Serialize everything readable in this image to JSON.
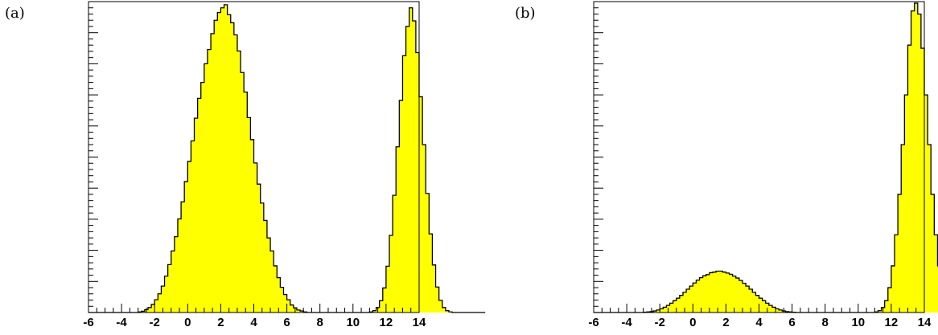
{
  "chart_data": [
    {
      "type": "bar",
      "panel_label": "(a)",
      "xlim": [
        -6,
        14
      ],
      "x_ticks": [
        "-6",
        "-4",
        "-2",
        "0",
        "2",
        "4",
        "6",
        "8",
        "10",
        "12",
        "14"
      ],
      "ylim": [
        0,
        1.0
      ],
      "y_tick_labels": false,
      "grid": false,
      "fill_color": "#ffff00",
      "line_color": "#000000",
      "bin_width": 0.2,
      "bin_start": -6,
      "values": [
        0,
        0,
        0,
        0,
        0,
        0,
        0,
        0,
        0,
        0,
        0,
        0,
        0,
        0,
        0,
        0.002,
        0.004,
        0.009,
        0.016,
        0.026,
        0.041,
        0.06,
        0.085,
        0.117,
        0.154,
        0.198,
        0.244,
        0.301,
        0.356,
        0.421,
        0.486,
        0.552,
        0.625,
        0.689,
        0.74,
        0.8,
        0.846,
        0.897,
        0.94,
        0.965,
        0.98,
        0.99,
        0.958,
        0.932,
        0.893,
        0.841,
        0.772,
        0.709,
        0.627,
        0.556,
        0.481,
        0.413,
        0.352,
        0.296,
        0.24,
        0.198,
        0.15,
        0.112,
        0.081,
        0.058,
        0.041,
        0.024,
        0.015,
        0.008,
        0.005,
        0.002,
        0,
        0,
        0,
        0,
        0,
        0,
        0,
        0,
        0,
        0,
        0,
        0,
        0,
        0,
        0,
        0,
        0,
        0,
        0,
        0.002,
        0.006,
        0.016,
        0.038,
        0.079,
        0.149,
        0.248,
        0.377,
        0.533,
        0.682,
        0.826,
        0.92,
        0.98,
        0.938,
        0.836,
        0.694,
        0.54,
        0.383,
        0.253,
        0.153,
        0.082,
        0.039,
        0.016,
        0.006,
        0.002,
        0,
        0,
        0,
        0,
        0,
        0,
        0,
        0,
        0,
        0
      ]
    },
    {
      "type": "bar",
      "panel_label": "(b)",
      "xlim": [
        -6,
        14
      ],
      "x_ticks": [
        "-6",
        "-4",
        "-2",
        "0",
        "2",
        "4",
        "6",
        "8",
        "10",
        "12",
        "14"
      ],
      "ylim": [
        0,
        1.0
      ],
      "y_tick_labels": false,
      "grid": false,
      "fill_color": "#ffff00",
      "line_color": "#000000",
      "bin_width": 0.2,
      "bin_start": -6,
      "values": [
        0,
        0,
        0,
        0,
        0,
        0,
        0,
        0,
        0,
        0,
        0,
        0,
        0,
        0,
        0,
        0.001,
        0.002,
        0.003,
        0.005,
        0.008,
        0.012,
        0.017,
        0.023,
        0.03,
        0.038,
        0.046,
        0.055,
        0.065,
        0.075,
        0.085,
        0.095,
        0.104,
        0.112,
        0.118,
        0.122,
        0.128,
        0.13,
        0.133,
        0.133,
        0.13,
        0.127,
        0.123,
        0.117,
        0.111,
        0.103,
        0.094,
        0.085,
        0.075,
        0.065,
        0.055,
        0.046,
        0.038,
        0.03,
        0.023,
        0.017,
        0.012,
        0.008,
        0.005,
        0.003,
        0.002,
        0.001,
        0,
        0,
        0,
        0,
        0,
        0,
        0,
        0,
        0,
        0,
        0,
        0,
        0,
        0,
        0,
        0,
        0,
        0,
        0,
        0,
        0,
        0,
        0,
        0,
        0.002,
        0.006,
        0.016,
        0.038,
        0.08,
        0.15,
        0.25,
        0.38,
        0.54,
        0.7,
        0.86,
        0.97,
        0.995,
        0.96,
        0.85,
        0.7,
        0.54,
        0.38,
        0.25,
        0.15,
        0.08,
        0.038,
        0.016,
        0.006,
        0.002,
        0,
        0,
        0,
        0,
        0,
        0,
        0,
        0,
        0,
        0
      ]
    }
  ]
}
